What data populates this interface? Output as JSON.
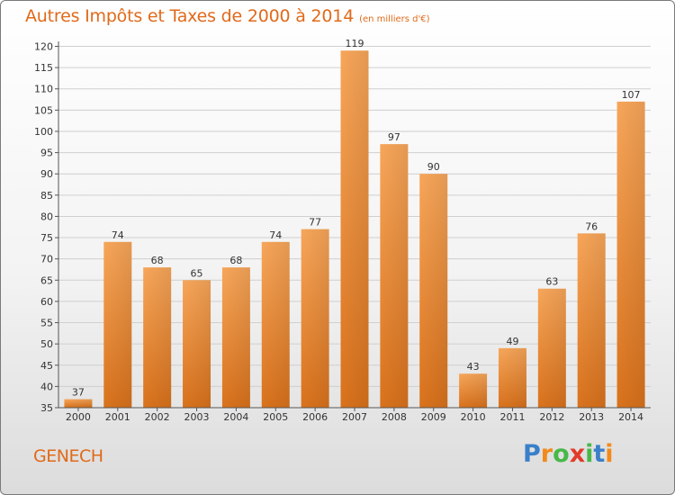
{
  "chart_data": {
    "type": "bar",
    "title": "Autres Impôts et Taxes de 2000 à 2014",
    "unit": "(en milliers d'€)",
    "categories": [
      "2000",
      "2001",
      "2002",
      "2003",
      "2004",
      "2005",
      "2006",
      "2007",
      "2008",
      "2009",
      "2010",
      "2011",
      "2012",
      "2013",
      "2014"
    ],
    "values": [
      37,
      74,
      68,
      65,
      68,
      74,
      77,
      119,
      97,
      90,
      43,
      49,
      63,
      76,
      107
    ],
    "ylim": [
      35,
      120
    ],
    "yticks": [
      35,
      40,
      45,
      50,
      55,
      60,
      65,
      70,
      75,
      80,
      85,
      90,
      95,
      100,
      105,
      110,
      115,
      120
    ],
    "grid": true,
    "bar_color": "#f0892a"
  },
  "footer": {
    "commune": "GENECH",
    "brand_letters": [
      "P",
      "r",
      "o",
      "x",
      "i",
      "t",
      "i"
    ]
  }
}
